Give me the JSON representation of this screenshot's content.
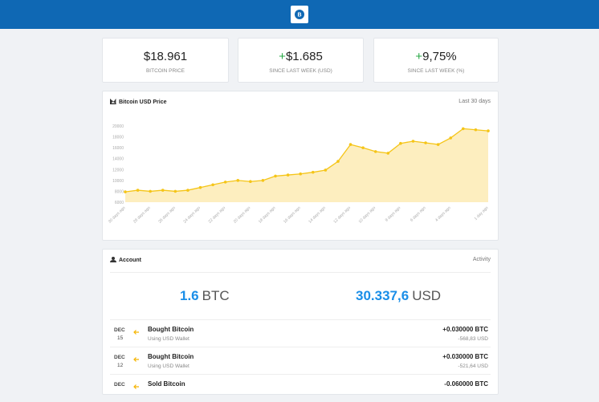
{
  "stats": [
    {
      "value": "$18.961",
      "label": "BITCOIN PRICE"
    },
    {
      "sign": "+",
      "value": "$1.685",
      "label": "SINCE LAST WEEK (USD)"
    },
    {
      "sign": "+",
      "value": "9,75%",
      "label": "SINCE LAST WEEK (%)"
    }
  ],
  "chart_data": {
    "type": "area",
    "title": "Bitcoin USD Price",
    "subtitle": "Last 30 days",
    "color": "#f5c518",
    "categories": [
      "30 days ago",
      null,
      "28 days ago",
      null,
      "26 days ago",
      null,
      "24 days ago",
      null,
      "22 days ago",
      null,
      "20 days ago",
      null,
      "18 days ago",
      null,
      "16 days ago",
      null,
      "14 days ago",
      null,
      "12 days ago",
      null,
      "10 days ago",
      null,
      "8 days ago",
      null,
      "6 days ago",
      null,
      "4 days ago",
      null,
      null,
      "1 day ago"
    ],
    "values": [
      7900,
      8200,
      8000,
      8200,
      8000,
      8200,
      8700,
      9200,
      9700,
      10000,
      9800,
      10000,
      10800,
      11000,
      11200,
      11500,
      11900,
      13500,
      16600,
      16000,
      15300,
      15000,
      16800,
      17200,
      16900,
      16600,
      17800,
      19500,
      19300,
      19100
    ],
    "ylim": [
      6000,
      20000
    ],
    "yticks": [
      6000,
      8000,
      10000,
      12000,
      14000,
      16000,
      18000,
      20000
    ]
  },
  "account": {
    "title": "Account",
    "link": "Activity",
    "btc": {
      "amount": "1.6",
      "unit": "BTC"
    },
    "usd": {
      "amount": "30.337,6",
      "unit": "USD"
    },
    "transactions": [
      {
        "month": "DEC",
        "day": "15",
        "title": "Bought Bitcoin",
        "subtitle": "Using USD Wallet",
        "amount": "+0.030000 BTC",
        "usd": "-568,83 USD"
      },
      {
        "month": "DEC",
        "day": "12",
        "title": "Bought Bitcoin",
        "subtitle": "Using USD Wallet",
        "amount": "+0.030000 BTC",
        "usd": "-521,64 USD"
      },
      {
        "month": "DEC",
        "title": "Sold Bitcoin",
        "amount": "-0.060000 BTC"
      }
    ]
  }
}
